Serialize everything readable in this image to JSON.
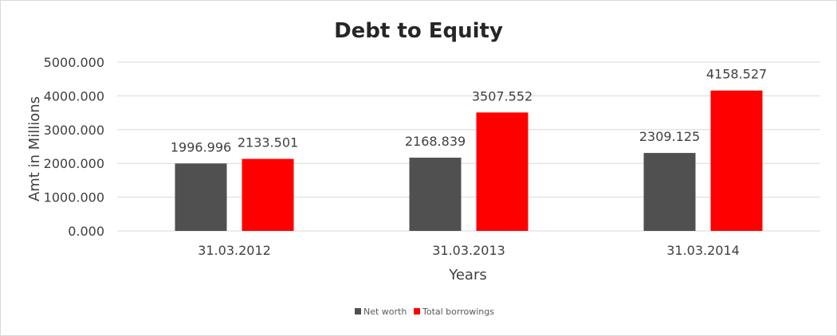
{
  "chart_data": {
    "type": "bar",
    "title": "Debt to Equity",
    "xlabel": "Years",
    "ylabel": "Amt in Millions",
    "categories": [
      "31.03.2012",
      "31.03.2013",
      "31.03.2014"
    ],
    "series": [
      {
        "name": "Net worth",
        "values": [
          1996.996,
          2168.839,
          2309.125
        ],
        "value_labels": [
          "1996.996",
          "2168.839",
          "2309.125"
        ],
        "color": "#505050"
      },
      {
        "name": "Total borrowings",
        "values": [
          2133.501,
          3507.552,
          4158.527
        ],
        "value_labels": [
          "2133.501",
          "3507.552",
          "4158.527"
        ],
        "color": "#ff0000"
      }
    ],
    "ylim": [
      0,
      5000
    ],
    "yticks": [
      0,
      1000,
      2000,
      3000,
      4000,
      5000
    ],
    "ytick_labels": [
      "0.000",
      "1000.000",
      "2000.000",
      "3000.000",
      "4000.000",
      "5000.000"
    ],
    "grid": "horizontal",
    "legend_position": "bottom"
  }
}
